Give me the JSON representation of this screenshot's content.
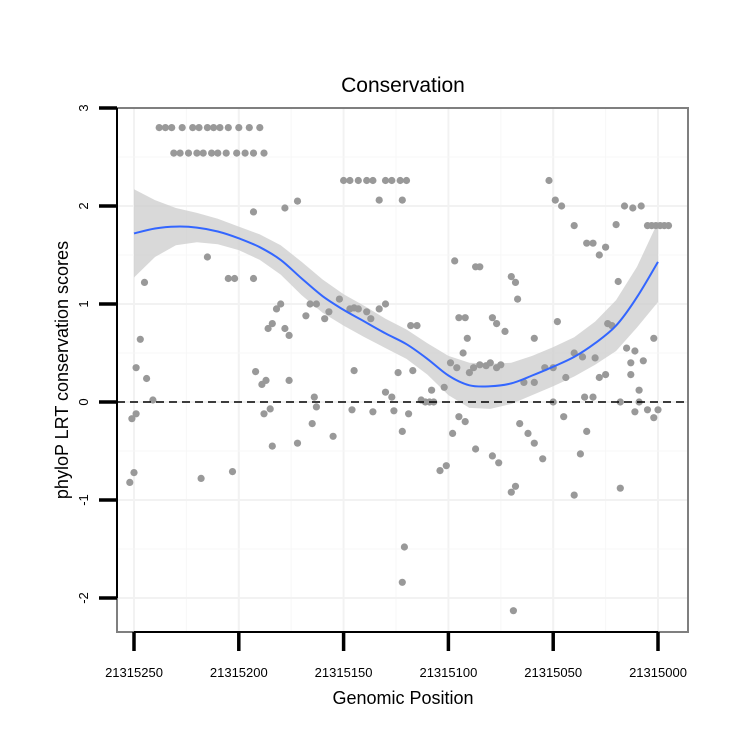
{
  "chart_data": {
    "type": "scatter",
    "title": "Conservation",
    "xlabel": "Genomic Position",
    "ylabel": "phyloP LRT conservation scores",
    "x_reversed": true,
    "xlim": [
      21315260,
      21314990
    ],
    "ylim": [
      -2.35,
      3.1
    ],
    "x_ticks": [
      21315250,
      21315200,
      21315150,
      21315100,
      21315050,
      21315000
    ],
    "x_tick_labels": [
      "21315250",
      "21315200",
      "21315150",
      "21315100",
      "21315050",
      "21315000"
    ],
    "y_ticks": [
      -2,
      -1,
      0,
      1,
      2,
      3
    ],
    "y_tick_labels": [
      "-2",
      "-1",
      "0",
      "1",
      "2",
      "3"
    ],
    "reference_line": {
      "y": 0,
      "style": "dashed"
    },
    "colors": {
      "points": "#999999",
      "smooth": "#3366ff",
      "band": "#cccccc",
      "frame": "#7f7f7f"
    },
    "points": [
      [
        21315238,
        2.8
      ],
      [
        21315235,
        2.8
      ],
      [
        21315232,
        2.8
      ],
      [
        21315227,
        2.8
      ],
      [
        21315222,
        2.8
      ],
      [
        21315219,
        2.8
      ],
      [
        21315215,
        2.8
      ],
      [
        21315212,
        2.8
      ],
      [
        21315209,
        2.8
      ],
      [
        21315205,
        2.8
      ],
      [
        21315200,
        2.8
      ],
      [
        21315195,
        2.8
      ],
      [
        21315190,
        2.8
      ],
      [
        21315231,
        2.54
      ],
      [
        21315228,
        2.54
      ],
      [
        21315224,
        2.54
      ],
      [
        21315220,
        2.54
      ],
      [
        21315217,
        2.54
      ],
      [
        21315213,
        2.54
      ],
      [
        21315210,
        2.54
      ],
      [
        21315206,
        2.54
      ],
      [
        21315201,
        2.54
      ],
      [
        21315197,
        2.54
      ],
      [
        21315193,
        2.54
      ],
      [
        21315188,
        2.54
      ],
      [
        21315150,
        2.26
      ],
      [
        21315147,
        2.26
      ],
      [
        21315143,
        2.26
      ],
      [
        21315139,
        2.26
      ],
      [
        21315136,
        2.26
      ],
      [
        21315130,
        2.26
      ],
      [
        21315127,
        2.26
      ],
      [
        21315123,
        2.26
      ],
      [
        21315120,
        2.26
      ],
      [
        21315193,
        1.94
      ],
      [
        21315178,
        1.98
      ],
      [
        21315172,
        2.05
      ],
      [
        21315133,
        2.06
      ],
      [
        21315122,
        2.06
      ],
      [
        21315052,
        2.26
      ],
      [
        21315049,
        2.06
      ],
      [
        21315046,
        2.0
      ],
      [
        21315040,
        1.8
      ],
      [
        21315034,
        1.62
      ],
      [
        21315031,
        1.62
      ],
      [
        21315028,
        1.5
      ],
      [
        21315025,
        1.58
      ],
      [
        21315020,
        1.81
      ],
      [
        21315016,
        2.0
      ],
      [
        21315012,
        1.98
      ],
      [
        21315008,
        2.0
      ],
      [
        21315005,
        1.8
      ],
      [
        21315003,
        1.8
      ],
      [
        21315001,
        1.8
      ],
      [
        21314999,
        1.8
      ],
      [
        21314997,
        1.8
      ],
      [
        21314995,
        1.8
      ],
      [
        21315215,
        1.48
      ],
      [
        21315205,
        1.26
      ],
      [
        21315202,
        1.26
      ],
      [
        21315193,
        1.26
      ],
      [
        21315245,
        1.22
      ],
      [
        21315097,
        1.44
      ],
      [
        21315087,
        1.38
      ],
      [
        21315085,
        1.38
      ],
      [
        21315070,
        1.28
      ],
      [
        21315068,
        1.22
      ],
      [
        21315067,
        1.05
      ],
      [
        21315019,
        1.23
      ],
      [
        21315186,
        0.75
      ],
      [
        21315184,
        0.8
      ],
      [
        21315182,
        0.95
      ],
      [
        21315180,
        1.0
      ],
      [
        21315178,
        0.75
      ],
      [
        21315176,
        0.68
      ],
      [
        21315168,
        0.88
      ],
      [
        21315166,
        1.0
      ],
      [
        21315163,
        1.0
      ],
      [
        21315159,
        0.85
      ],
      [
        21315157,
        0.92
      ],
      [
        21315152,
        1.05
      ],
      [
        21315147,
        0.95
      ],
      [
        21315145,
        0.96
      ],
      [
        21315143,
        0.95
      ],
      [
        21315139,
        0.92
      ],
      [
        21315137,
        0.85
      ],
      [
        21315133,
        0.95
      ],
      [
        21315130,
        1.0
      ],
      [
        21315118,
        0.78
      ],
      [
        21315115,
        0.78
      ],
      [
        21315095,
        0.86
      ],
      [
        21315092,
        0.86
      ],
      [
        21315091,
        0.65
      ],
      [
        21315079,
        0.86
      ],
      [
        21315077,
        0.8
      ],
      [
        21315073,
        0.72
      ],
      [
        21315059,
        0.65
      ],
      [
        21315048,
        0.82
      ],
      [
        21315040,
        0.5
      ],
      [
        21315036,
        0.46
      ],
      [
        21315030,
        0.45
      ],
      [
        21315028,
        0.25
      ],
      [
        21315024,
        0.8
      ],
      [
        21315022,
        0.78
      ],
      [
        21315013,
        0.4
      ],
      [
        21315011,
        0.52
      ],
      [
        21315009,
        0.12
      ],
      [
        21315007,
        0.42
      ],
      [
        21315002,
        0.65
      ],
      [
        21315249,
        0.35
      ],
      [
        21315247,
        0.64
      ],
      [
        21315244,
        0.24
      ],
      [
        21315192,
        0.31
      ],
      [
        21315189,
        0.18
      ],
      [
        21315187,
        0.22
      ],
      [
        21315176,
        0.22
      ],
      [
        21315164,
        0.05
      ],
      [
        21315145,
        0.32
      ],
      [
        21315130,
        0.1
      ],
      [
        21315124,
        0.3
      ],
      [
        21315117,
        0.32
      ],
      [
        21315108,
        0.12
      ],
      [
        21315102,
        0.15
      ],
      [
        21315099,
        0.4
      ],
      [
        21315096,
        0.35
      ],
      [
        21315093,
        0.5
      ],
      [
        21315090,
        0.3
      ],
      [
        21315088,
        0.35
      ],
      [
        21315085,
        0.38
      ],
      [
        21315082,
        0.37
      ],
      [
        21315080,
        0.4
      ],
      [
        21315077,
        0.35
      ],
      [
        21315075,
        0.38
      ],
      [
        21315064,
        0.2
      ],
      [
        21315059,
        0.2
      ],
      [
        21315054,
        0.35
      ],
      [
        21315050,
        0.35
      ],
      [
        21315044,
        0.25
      ],
      [
        21315035,
        0.05
      ],
      [
        21315025,
        0.28
      ],
      [
        21315018,
        0.0
      ],
      [
        21315015,
        0.55
      ],
      [
        21315013,
        0.28
      ],
      [
        21315252,
        -0.82
      ],
      [
        21315250,
        -0.72
      ],
      [
        21315251,
        -0.17
      ],
      [
        21315249,
        -0.12
      ],
      [
        21315241,
        0.02
      ],
      [
        21315218,
        -0.78
      ],
      [
        21315203,
        -0.71
      ],
      [
        21315188,
        -0.12
      ],
      [
        21315185,
        -0.07
      ],
      [
        21315184,
        -0.45
      ],
      [
        21315172,
        -0.42
      ],
      [
        21315165,
        -0.22
      ],
      [
        21315163,
        -0.05
      ],
      [
        21315155,
        -0.35
      ],
      [
        21315146,
        -0.08
      ],
      [
        21315136,
        -0.1
      ],
      [
        21315127,
        0.05
      ],
      [
        21315126,
        -0.09
      ],
      [
        21315122,
        -0.3
      ],
      [
        21315119,
        -0.12
      ],
      [
        21315113,
        0.02
      ],
      [
        21315111,
        0.0
      ],
      [
        21315109,
        0.0
      ],
      [
        21315107,
        0.0
      ],
      [
        21315104,
        -0.7
      ],
      [
        21315101,
        -0.65
      ],
      [
        21315098,
        -0.32
      ],
      [
        21315095,
        -0.15
      ],
      [
        21315092,
        -0.2
      ],
      [
        21315087,
        -0.48
      ],
      [
        21315079,
        -0.55
      ],
      [
        21315076,
        -0.62
      ],
      [
        21315070,
        -0.92
      ],
      [
        21315068,
        -0.86
      ],
      [
        21315066,
        -0.22
      ],
      [
        21315062,
        -0.32
      ],
      [
        21315059,
        -0.42
      ],
      [
        21315055,
        -0.58
      ],
      [
        21315050,
        0.0
      ],
      [
        21315045,
        -0.15
      ],
      [
        21315040,
        -0.95
      ],
      [
        21315037,
        -0.53
      ],
      [
        21315034,
        -0.3
      ],
      [
        21315031,
        0.05
      ],
      [
        21315018,
        -0.88
      ],
      [
        21315011,
        -0.1
      ],
      [
        21315009,
        0.0
      ],
      [
        21315005,
        -0.08
      ],
      [
        21315002,
        -0.16
      ],
      [
        21315000,
        -0.08
      ],
      [
        21315121,
        -1.48
      ],
      [
        21315122,
        -1.84
      ],
      [
        21315069,
        -2.13
      ]
    ],
    "smooth_line": {
      "x": [
        21315250,
        21315240,
        21315230,
        21315220,
        21315210,
        21315200,
        21315190,
        21315180,
        21315170,
        21315160,
        21315150,
        21315140,
        21315130,
        21315120,
        21315110,
        21315100,
        21315090,
        21315080,
        21315070,
        21315060,
        21315050,
        21315040,
        21315030,
        21315020,
        21315010,
        21315000
      ],
      "y": [
        1.72,
        1.77,
        1.79,
        1.78,
        1.74,
        1.67,
        1.58,
        1.45,
        1.26,
        1.08,
        0.94,
        0.82,
        0.7,
        0.59,
        0.44,
        0.27,
        0.17,
        0.16,
        0.19,
        0.27,
        0.36,
        0.46,
        0.6,
        0.78,
        1.07,
        1.43
      ],
      "lower": [
        1.27,
        1.48,
        1.6,
        1.63,
        1.61,
        1.55,
        1.45,
        1.3,
        1.09,
        0.91,
        0.78,
        0.66,
        0.55,
        0.44,
        0.28,
        0.07,
        -0.06,
        -0.07,
        -0.02,
        0.07,
        0.16,
        0.26,
        0.38,
        0.52,
        0.76,
        1.02
      ],
      "upper": [
        2.17,
        2.06,
        1.98,
        1.93,
        1.87,
        1.79,
        1.71,
        1.6,
        1.43,
        1.25,
        1.1,
        0.98,
        0.85,
        0.74,
        0.6,
        0.47,
        0.4,
        0.39,
        0.4,
        0.47,
        0.56,
        0.66,
        0.82,
        1.04,
        1.38,
        1.84
      ]
    }
  }
}
